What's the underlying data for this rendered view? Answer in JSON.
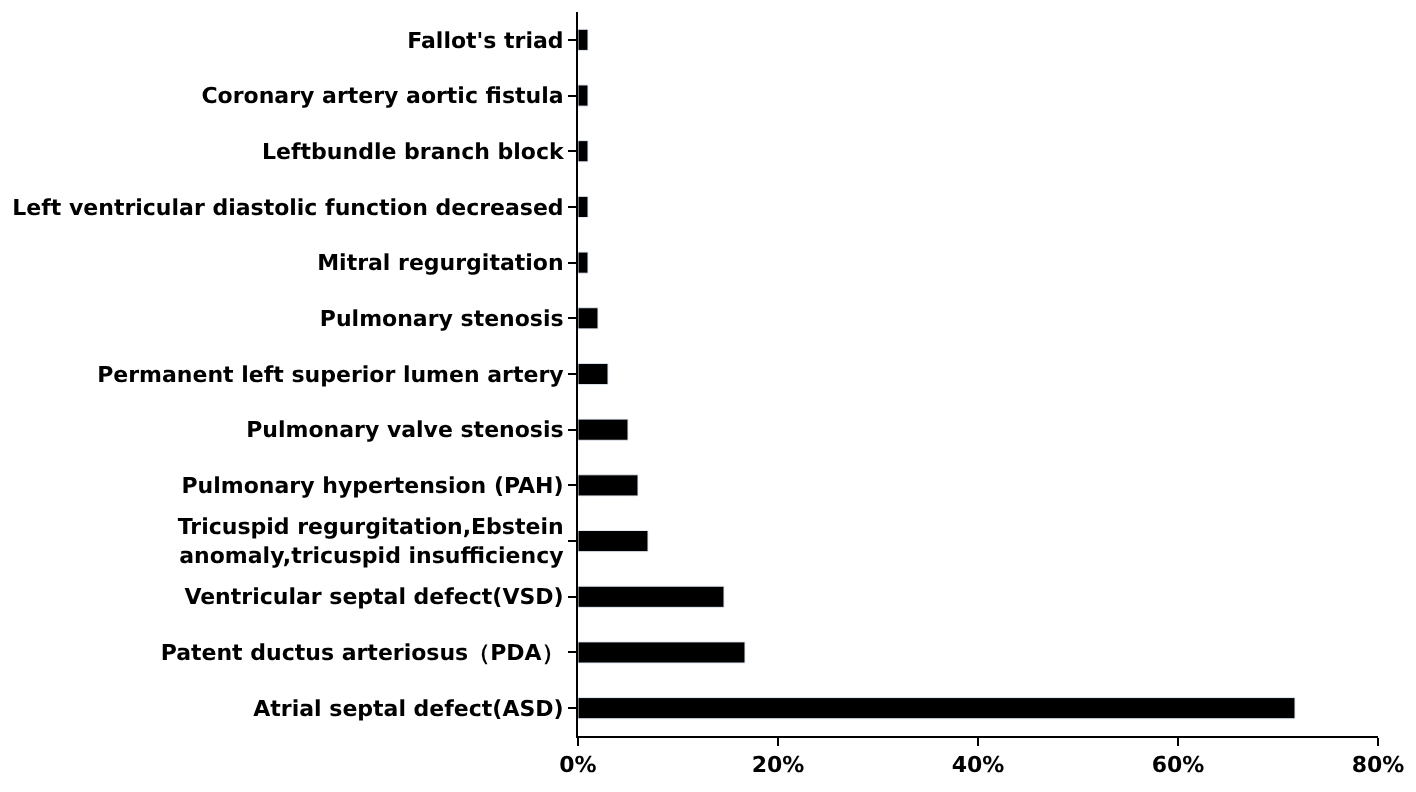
{
  "chart_data": {
    "type": "bar",
    "orientation": "horizontal",
    "categories": [
      "Fallot's triad",
      "Coronary artery aortic fistula",
      "Leftbundle branch block",
      "Left ventricular diastolic function decreased",
      "Mitral regurgitation",
      "Pulmonary stenosis",
      "Permanent left superior lumen artery",
      "Pulmonary valve stenosis",
      "Pulmonary hypertension (PAH)",
      "Tricuspid regurgitation,Ebstein\nanomaly,tricuspid insufficiency",
      "Ventricular septal defect(VSD)",
      "Patent ductus arteriosus（PDA）",
      "Atrial septal defect(ASD)"
    ],
    "values": [
      1,
      1,
      1,
      1,
      1,
      2,
      3,
      5,
      6,
      7,
      14.6,
      16.7,
      71.7
    ],
    "color": "#000000",
    "xlim": [
      0,
      80
    ],
    "xticks": [
      {
        "value": 0,
        "label": "0%"
      },
      {
        "value": 20,
        "label": "20%"
      },
      {
        "value": 40,
        "label": "40%"
      },
      {
        "value": 60,
        "label": "60%"
      },
      {
        "value": 80,
        "label": "80%"
      }
    ],
    "grid": false,
    "legend": false
  }
}
